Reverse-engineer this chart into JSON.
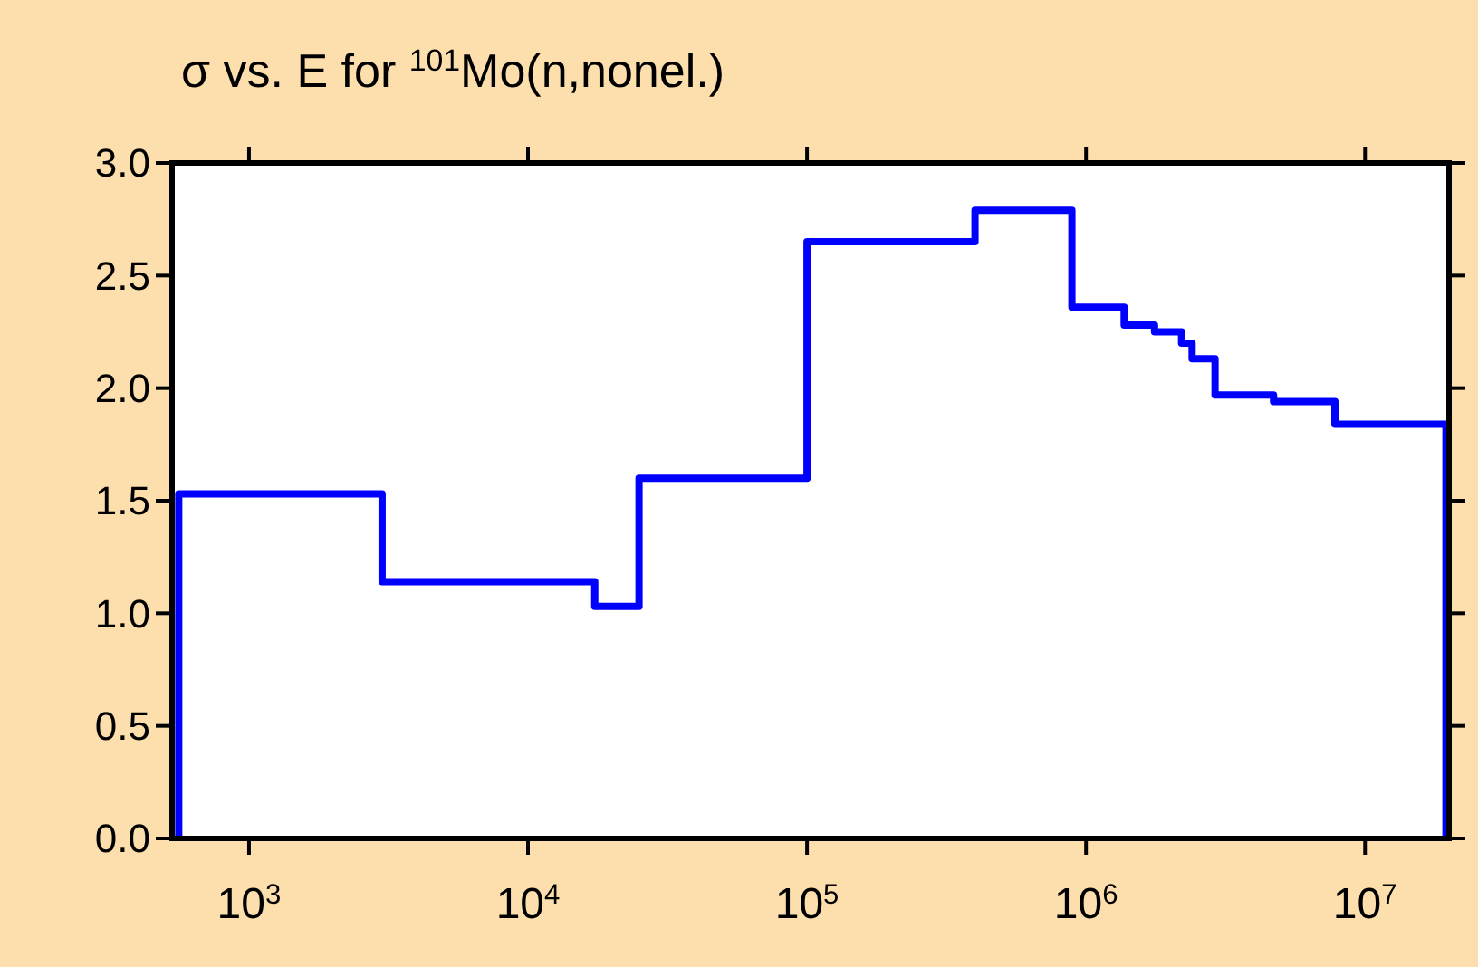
{
  "chart_data": {
    "type": "step",
    "title": "σ vs. E for $^{101}$Mo(n,nonel.)",
    "log": "x",
    "grid": false,
    "xlim": [
      530,
      20000000
    ],
    "xticks": [
      {
        "value": 1000,
        "label": "10$^{3}$"
      },
      {
        "value": 10000,
        "label": "10$^{4}$"
      },
      {
        "value": 100000,
        "label": "10$^{5}$"
      },
      {
        "value": 1000000,
        "label": "10$^{6}$"
      },
      {
        "value": 10000000,
        "label": "10$^{7}$"
      }
    ],
    "ylim": [
      0,
      3
    ],
    "yticks": [
      {
        "value": 0,
        "label": "0.0"
      },
      {
        "value": 0.5,
        "label": "0.5"
      },
      {
        "value": 1,
        "label": "1.0"
      },
      {
        "value": 1.5,
        "label": "1.5"
      },
      {
        "value": 2,
        "label": "2.0"
      },
      {
        "value": 2.5,
        "label": "2.5"
      },
      {
        "value": 3,
        "label": "3.0"
      }
    ],
    "series": [
      {
        "color": "#0000ff",
        "x": [
          560,
          560,
          3000,
          17350,
          25000,
          100000,
          400000,
          890000,
          1370000,
          1760000,
          2200000,
          2400000,
          2900000,
          4700000,
          7800000,
          19500000
        ],
        "values": [
          0,
          1.53,
          1.14,
          1.03,
          1.6,
          2.65,
          2.79,
          2.36,
          2.28,
          2.25,
          2.2,
          2.13,
          1.97,
          1.94,
          1.84,
          0
        ]
      }
    ]
  }
}
